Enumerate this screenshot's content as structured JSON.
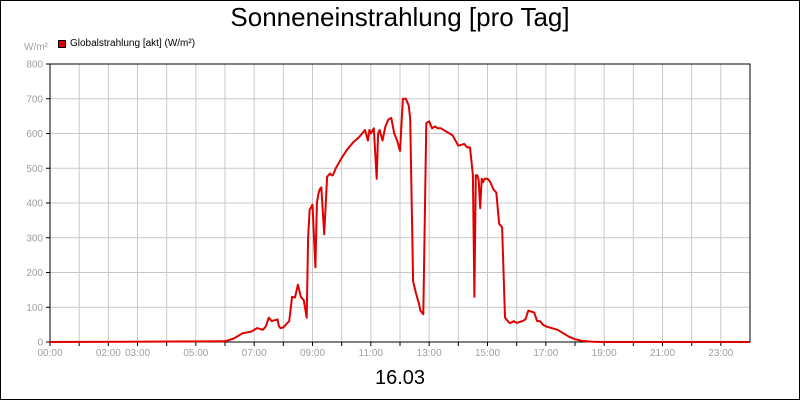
{
  "chart_data": {
    "type": "line",
    "title": "Sonneneinstrahlung [pro Tag]",
    "ylabel": "W/m²",
    "xlabel": "16.03",
    "ylim": [
      0,
      800
    ],
    "yticks": [
      0,
      100,
      200,
      300,
      400,
      500,
      600,
      700,
      800
    ],
    "xlim": [
      0,
      24
    ],
    "xticks": [
      0,
      1,
      2,
      3,
      4,
      5,
      6,
      7,
      8,
      9,
      10,
      11,
      12,
      13,
      14,
      15,
      16,
      17,
      18,
      19,
      20,
      21,
      22,
      23
    ],
    "xtick_labels": [
      "00:00",
      "",
      "02:00",
      "03:00",
      "",
      "05:00",
      "",
      "07:00",
      "",
      "09:00",
      "",
      "11:00",
      "",
      "13:00",
      "",
      "15:00",
      "",
      "17:00",
      "",
      "19:00",
      "",
      "21:00",
      "",
      "23:00"
    ],
    "grid": true,
    "legend": "top-left",
    "series": [
      {
        "name": "Globalstrahlung [akt] (W/m²)",
        "color": "#e00000",
        "x": [
          0,
          6.0,
          6.3,
          6.6,
          6.9,
          7.1,
          7.3,
          7.4,
          7.5,
          7.6,
          7.8,
          7.85,
          7.9,
          8.0,
          8.2,
          8.3,
          8.4,
          8.5,
          8.6,
          8.7,
          8.8,
          8.85,
          8.9,
          9.0,
          9.1,
          9.15,
          9.2,
          9.25,
          9.3,
          9.4,
          9.5,
          9.6,
          9.65,
          9.7,
          9.8,
          9.9,
          10.0,
          10.2,
          10.4,
          10.6,
          10.8,
          10.9,
          10.95,
          11.0,
          11.1,
          11.2,
          11.25,
          11.3,
          11.4,
          11.5,
          11.6,
          11.7,
          11.8,
          11.9,
          12.0,
          12.1,
          12.2,
          12.3,
          12.35,
          12.45,
          12.55,
          12.65,
          12.7,
          12.8,
          12.9,
          13.0,
          13.05,
          13.1,
          13.2,
          13.3,
          13.4,
          13.6,
          13.8,
          14.0,
          14.2,
          14.3,
          14.4,
          14.5,
          14.55,
          14.6,
          14.65,
          14.7,
          14.75,
          14.8,
          14.85,
          14.9,
          15.0,
          15.1,
          15.2,
          15.3,
          15.4,
          15.5,
          15.6,
          15.7,
          15.75,
          15.8,
          15.9,
          16.0,
          16.2,
          16.3,
          16.4,
          16.6,
          16.7,
          16.8,
          16.9,
          17.0,
          17.2,
          17.4,
          17.6,
          17.8,
          18.0,
          18.2,
          18.4,
          18.6,
          19.0,
          24.0
        ],
        "y": [
          0,
          2,
          10,
          25,
          30,
          40,
          35,
          45,
          70,
          60,
          65,
          45,
          40,
          42,
          60,
          130,
          128,
          165,
          130,
          120,
          70,
          300,
          380,
          395,
          215,
          400,
          425,
          440,
          445,
          310,
          475,
          485,
          480,
          480,
          500,
          515,
          530,
          555,
          575,
          590,
          610,
          580,
          610,
          600,
          615,
          470,
          600,
          610,
          580,
          620,
          640,
          645,
          600,
          580,
          550,
          700,
          700,
          680,
          640,
          175,
          140,
          110,
          90,
          80,
          630,
          635,
          625,
          615,
          620,
          615,
          615,
          605,
          595,
          565,
          570,
          560,
          560,
          480,
          130,
          480,
          480,
          465,
          385,
          470,
          460,
          470,
          470,
          460,
          440,
          430,
          340,
          330,
          70,
          60,
          55,
          55,
          60,
          55,
          60,
          65,
          90,
          85,
          60,
          60,
          50,
          45,
          40,
          35,
          25,
          15,
          8,
          4,
          2,
          1,
          0,
          0
        ]
      }
    ]
  },
  "colors": {
    "axis": "#000000",
    "grid": "#c8c8c8",
    "tick_text": "#a0a0a0"
  }
}
